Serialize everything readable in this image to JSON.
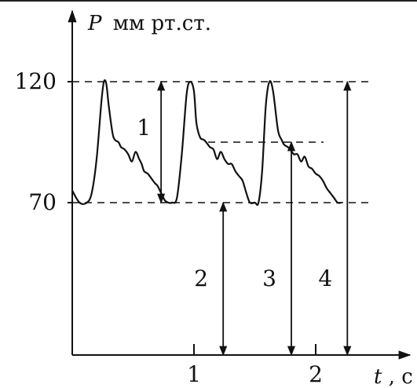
{
  "chart_data": {
    "type": "line",
    "title": "",
    "y_label_symbol": "P",
    "y_label_unit": "мм рт.ст.",
    "x_label_symbol": "t",
    "x_label_unit": ", с",
    "xlim": [
      0,
      2.3
    ],
    "ylim": [
      0,
      135
    ],
    "y_ticks": [
      {
        "value": 120,
        "label": "120"
      },
      {
        "value": 70,
        "label": "70"
      }
    ],
    "x_ticks": [
      {
        "value": 1,
        "label": "1"
      },
      {
        "value": 2,
        "label": "2"
      }
    ],
    "reference_levels": [
      120,
      95,
      70
    ],
    "series": [
      {
        "x": [
          0,
          0.06,
          0.12,
          0.16,
          0.2,
          0.24,
          0.26,
          0.28,
          0.3,
          0.33,
          0.35,
          0.38,
          0.4,
          0.43,
          0.46,
          0.49,
          0.52,
          0.55,
          0.57,
          0.59,
          0.62,
          0.65,
          0.68,
          0.7,
          0.73,
          0.76,
          0.79,
          0.82,
          0.86,
          0.9,
          0.94,
          0.97,
          1.0,
          1.02,
          1.05,
          1.08,
          1.1,
          1.13,
          1.16,
          1.19,
          1.22,
          1.25,
          1.28,
          1.31,
          1.34,
          1.37,
          1.4,
          1.43,
          1.46,
          1.5,
          1.53,
          1.56,
          1.59,
          1.62,
          1.65,
          1.69,
          1.72,
          1.74,
          1.77,
          1.79,
          1.82,
          1.85,
          1.88,
          1.91,
          1.94,
          1.97,
          2.0,
          2.03,
          2.06,
          2.09,
          2.12,
          2.15,
          2.18,
          2.21
        ],
        "y": [
          75,
          70,
          70,
          74,
          88,
          112,
          120,
          119,
          110,
          99,
          96,
          95,
          93,
          92,
          90,
          87,
          91,
          88,
          86,
          83,
          82,
          80,
          78,
          77,
          74,
          71,
          70,
          70,
          72,
          90,
          115,
          120,
          116,
          103,
          97,
          96,
          95,
          93,
          92,
          88,
          91,
          88,
          86,
          86,
          83,
          81,
          79,
          74,
          70,
          70,
          70,
          83,
          110,
          120,
          116,
          100,
          96,
          94,
          93,
          92,
          90,
          90,
          87,
          89,
          85,
          84,
          82,
          81,
          79,
          76,
          74,
          72,
          70,
          70
        ]
      }
    ],
    "annotations": [
      {
        "label": "1",
        "x": 0.73,
        "y_from": 70,
        "y_to": 120
      },
      {
        "label": "2",
        "x": 1.24,
        "y_from": 0,
        "y_to": 70
      },
      {
        "label": "3",
        "x": 1.8,
        "y_from": 0,
        "y_to": 95
      },
      {
        "label": "4",
        "x": 2.26,
        "y_from": 0,
        "y_to": 120
      }
    ]
  }
}
